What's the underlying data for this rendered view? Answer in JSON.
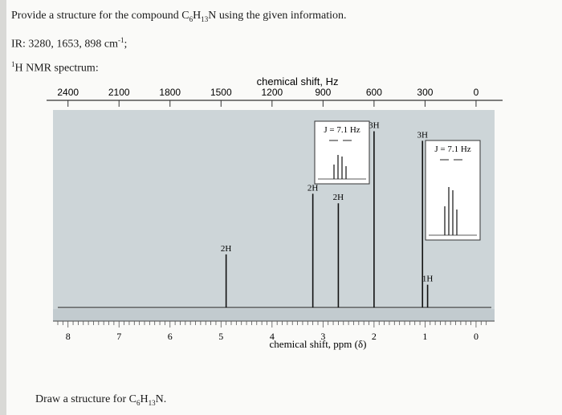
{
  "question": {
    "title_prefix": "Provide a structure for the compound C",
    "title_sub1": "6",
    "title_mid1": "H",
    "title_sub2": "13",
    "title_suffix": "N using the given information.",
    "ir_label": "IR: 3280, 1653, 898 cm",
    "ir_exponent": "-1",
    "ir_end": ";",
    "nmr_sup": "1",
    "nmr_label": "H NMR spectrum:",
    "answer_prefix": "Draw a structure for C",
    "answer_sub1": "6",
    "answer_mid": "H",
    "answer_sub2": "13",
    "answer_suffix": "N."
  },
  "chart_data": {
    "type": "line",
    "top_axis": {
      "title": "chemical shift, Hz",
      "ticks": [
        2400,
        2100,
        1800,
        1500,
        1200,
        900,
        600,
        300,
        0
      ],
      "labels": [
        "2400",
        "2100",
        "1800",
        "1500",
        "1200",
        "900",
        "600",
        "300",
        "0"
      ]
    },
    "bottom_axis": {
      "title": "chemical shift, ppm (δ)",
      "ticks": [
        8,
        7,
        6,
        5,
        4,
        3,
        2,
        1,
        0
      ],
      "labels": [
        "8",
        "7",
        "6",
        "5",
        "4",
        "3",
        "2",
        "1",
        "0"
      ],
      "range": [
        8.2,
        -0.3
      ]
    },
    "peaks": [
      {
        "ppm": 4.9,
        "height": 0.28,
        "label": "2H"
      },
      {
        "ppm": 3.2,
        "height": 0.6,
        "label": "2H"
      },
      {
        "ppm": 2.7,
        "height": 0.55,
        "label": "2H"
      },
      {
        "ppm": 2.0,
        "height": 0.93,
        "label": "3H"
      },
      {
        "ppm": 1.05,
        "height": 0.88,
        "label": "3H"
      },
      {
        "ppm": 0.95,
        "height": 0.12,
        "label": "1H"
      }
    ],
    "insets": [
      {
        "position": "upper-center",
        "label": "J = 7.1 Hz"
      },
      {
        "position": "right",
        "label": "J = 7.1 Hz"
      }
    ]
  }
}
